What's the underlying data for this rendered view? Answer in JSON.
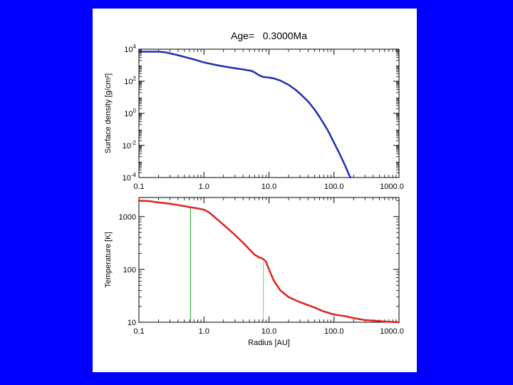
{
  "page": {
    "background_color": "#0000FF",
    "panel_color": "#FFFFFF"
  },
  "chart_data": [
    {
      "type": "line",
      "title": "Age=   0.3000Ma",
      "xlabel": "",
      "ylabel": "Surface density [g/cm²]",
      "xscale": "log",
      "yscale": "log",
      "xlim": [
        0.1,
        1000.0
      ],
      "ylim": [
        0.0001,
        10000
      ],
      "grid": false,
      "x_ticks": [
        {
          "value": 0.1,
          "label": "0.1"
        },
        {
          "value": 1,
          "label": "1.0"
        },
        {
          "value": 10,
          "label": "10.0"
        },
        {
          "value": 100,
          "label": "100.0"
        },
        {
          "value": 1000,
          "label": "1000.0"
        }
      ],
      "y_ticks": [
        {
          "value": 10000,
          "base": "10",
          "exp": "4"
        },
        {
          "value": 100,
          "base": "10",
          "exp": "2"
        },
        {
          "value": 1,
          "base": "10",
          "exp": "0"
        },
        {
          "value": 0.01,
          "base": "10",
          "exp": "-2"
        },
        {
          "value": 0.0001,
          "base": "10",
          "exp": "-4"
        }
      ],
      "series": [
        {
          "color": "#1F2FB0",
          "x": [
            0.1,
            0.15,
            0.2,
            0.25,
            0.3,
            0.4,
            0.5,
            0.7,
            1.0,
            1.5,
            2.0,
            3.0,
            4.0,
            5.0,
            5.5,
            6.0,
            7.0,
            8.0,
            10,
            12,
            15,
            20,
            25,
            30,
            40,
            50,
            60,
            80,
            100,
            120,
            150,
            170,
            180
          ],
          "y": [
            7000,
            7000,
            7000,
            6500,
            5500,
            4200,
            3300,
            2300,
            1500,
            1050,
            850,
            650,
            550,
            470,
            430,
            360,
            240,
            190,
            170,
            150,
            110,
            60,
            32,
            17,
            5.5,
            1.8,
            0.6,
            0.09,
            0.015,
            0.0035,
            0.0005,
            0.00015,
            0.0001
          ]
        }
      ]
    },
    {
      "type": "line",
      "title": "",
      "xlabel": "Radius [AU]",
      "ylabel": "Temperature [K]",
      "xscale": "log",
      "yscale": "log",
      "xlim": [
        0.1,
        1000.0
      ],
      "ylim": [
        10,
        2300
      ],
      "grid": false,
      "x_ticks": [
        {
          "value": 0.1,
          "label": "0.1"
        },
        {
          "value": 1,
          "label": "1.0"
        },
        {
          "value": 10,
          "label": "10.0"
        },
        {
          "value": 100,
          "label": "100.0"
        },
        {
          "value": 1000,
          "label": "1000.0"
        }
      ],
      "y_ticks": [
        {
          "value": 1000,
          "label": "1000"
        },
        {
          "value": 100,
          "label": "100"
        },
        {
          "value": 10,
          "label": "10"
        }
      ],
      "vlines": [
        {
          "x": 0.62,
          "y_top": 1500,
          "color": "#22AA22"
        },
        {
          "x": 8.2,
          "y_top": 140,
          "color": "#77CC77"
        }
      ],
      "series": [
        {
          "color": "#DD2222",
          "x": [
            0.1,
            0.15,
            0.2,
            0.3,
            0.4,
            0.5,
            0.62,
            0.8,
            1.0,
            1.2,
            1.5,
            2.0,
            3.0,
            4.0,
            5.0,
            6.0,
            7.0,
            8.0,
            9.0,
            10,
            12,
            15,
            20,
            30,
            50,
            70,
            100,
            150,
            200,
            300,
            500,
            700,
            1000
          ],
          "y": [
            2000,
            1950,
            1850,
            1750,
            1650,
            1580,
            1500,
            1430,
            1350,
            1200,
            950,
            700,
            450,
            320,
            240,
            190,
            170,
            160,
            140,
            100,
            60,
            40,
            30,
            24,
            19,
            16,
            14,
            13,
            12,
            11,
            10.5,
            10.2,
            10
          ]
        }
      ]
    }
  ]
}
